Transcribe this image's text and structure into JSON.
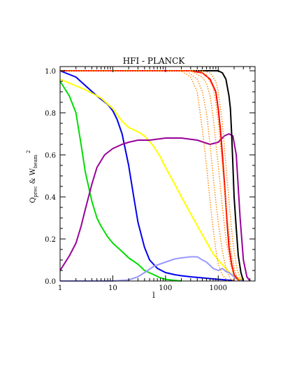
{
  "chart_data": {
    "type": "line",
    "title": "HFI - PLANCK",
    "xlabel": "l",
    "ylabel_main": "Q",
    "ylabel_main_sub": "prec",
    "ylabel_mid": " & W",
    "ylabel_beam_sub": "beam",
    "ylabel_sup": "2",
    "xscale": "log",
    "xlim": [
      1,
      5000
    ],
    "ylim": [
      0,
      1.02
    ],
    "grid": false,
    "x_ticks": [
      {
        "value": 1,
        "label": "1"
      },
      {
        "value": 10,
        "label": "10"
      },
      {
        "value": 100,
        "label": "100"
      },
      {
        "value": 1000,
        "label": "1000"
      }
    ],
    "y_ticks": [
      {
        "value": 0.0,
        "label": "0.0"
      },
      {
        "value": 0.2,
        "label": "0.2"
      },
      {
        "value": 0.4,
        "label": "0.4"
      },
      {
        "value": 0.6,
        "label": "0.6"
      },
      {
        "value": 0.8,
        "label": "0.8"
      },
      {
        "value": 1.0,
        "label": "1.0"
      }
    ],
    "series": [
      {
        "color": "#00dd00",
        "style": "solid",
        "points": [
          [
            1,
            0.95
          ],
          [
            1.5,
            0.88
          ],
          [
            2,
            0.8
          ],
          [
            2.5,
            0.65
          ],
          [
            3,
            0.52
          ],
          [
            4,
            0.38
          ],
          [
            5,
            0.3
          ],
          [
            6,
            0.26
          ],
          [
            8,
            0.21
          ],
          [
            10,
            0.18
          ],
          [
            15,
            0.14
          ],
          [
            20,
            0.11
          ],
          [
            30,
            0.08
          ],
          [
            40,
            0.05
          ],
          [
            60,
            0.03
          ],
          [
            80,
            0.015
          ],
          [
            100,
            0.008
          ],
          [
            150,
            0.003
          ],
          [
            200,
            0.0
          ]
        ]
      },
      {
        "color": "#0000ee",
        "style": "solid",
        "points": [
          [
            1,
            1.0
          ],
          [
            2,
            0.97
          ],
          [
            3,
            0.93
          ],
          [
            5,
            0.88
          ],
          [
            8,
            0.84
          ],
          [
            10,
            0.81
          ],
          [
            12,
            0.77
          ],
          [
            15,
            0.7
          ],
          [
            20,
            0.55
          ],
          [
            25,
            0.4
          ],
          [
            30,
            0.28
          ],
          [
            40,
            0.16
          ],
          [
            50,
            0.1
          ],
          [
            70,
            0.06
          ],
          [
            100,
            0.04
          ],
          [
            150,
            0.03
          ],
          [
            200,
            0.025
          ],
          [
            300,
            0.02
          ],
          [
            500,
            0.015
          ],
          [
            800,
            0.01
          ],
          [
            1000,
            0.008
          ],
          [
            2000,
            0.002
          ]
        ]
      },
      {
        "color": "#ffff00",
        "style": "solid",
        "points": [
          [
            1,
            0.96
          ],
          [
            3,
            0.91
          ],
          [
            6,
            0.87
          ],
          [
            10,
            0.82
          ],
          [
            15,
            0.76
          ],
          [
            20,
            0.73
          ],
          [
            30,
            0.71
          ],
          [
            40,
            0.69
          ],
          [
            60,
            0.64
          ],
          [
            80,
            0.59
          ],
          [
            100,
            0.54
          ],
          [
            150,
            0.46
          ],
          [
            200,
            0.4
          ],
          [
            300,
            0.32
          ],
          [
            500,
            0.22
          ],
          [
            800,
            0.13
          ],
          [
            1000,
            0.1
          ],
          [
            1500,
            0.05
          ],
          [
            2000,
            0.02
          ],
          [
            3000,
            0.005
          ]
        ]
      },
      {
        "color": "#990099",
        "style": "solid",
        "points": [
          [
            1,
            0.05
          ],
          [
            1.5,
            0.12
          ],
          [
            2,
            0.18
          ],
          [
            2.5,
            0.26
          ],
          [
            3,
            0.34
          ],
          [
            4,
            0.46
          ],
          [
            5,
            0.54
          ],
          [
            7,
            0.6
          ],
          [
            10,
            0.63
          ],
          [
            15,
            0.65
          ],
          [
            20,
            0.66
          ],
          [
            30,
            0.67
          ],
          [
            50,
            0.67
          ],
          [
            100,
            0.68
          ],
          [
            200,
            0.68
          ],
          [
            400,
            0.67
          ],
          [
            700,
            0.65
          ],
          [
            1000,
            0.66
          ],
          [
            1300,
            0.69
          ],
          [
            1600,
            0.7
          ],
          [
            1900,
            0.69
          ],
          [
            2200,
            0.6
          ],
          [
            2600,
            0.3
          ],
          [
            3000,
            0.1
          ],
          [
            3500,
            0.02
          ],
          [
            4000,
            0.0
          ]
        ]
      },
      {
        "color": "#9999ff",
        "style": "solid",
        "points": [
          [
            1,
            0.0
          ],
          [
            10,
            0.0
          ],
          [
            20,
            0.005
          ],
          [
            30,
            0.02
          ],
          [
            40,
            0.04
          ],
          [
            60,
            0.07
          ],
          [
            100,
            0.09
          ],
          [
            150,
            0.105
          ],
          [
            200,
            0.11
          ],
          [
            300,
            0.115
          ],
          [
            400,
            0.115
          ],
          [
            500,
            0.1
          ],
          [
            600,
            0.09
          ],
          [
            800,
            0.06
          ],
          [
            1000,
            0.05
          ],
          [
            1200,
            0.06
          ],
          [
            1400,
            0.045
          ],
          [
            1600,
            0.04
          ],
          [
            1800,
            0.03
          ],
          [
            2200,
            0.01
          ],
          [
            3000,
            0.0
          ]
        ]
      },
      {
        "color": "#000000",
        "style": "solid",
        "points": [
          [
            1,
            1.0
          ],
          [
            500,
            1.0
          ],
          [
            1000,
            1.0
          ],
          [
            1200,
            0.99
          ],
          [
            1400,
            0.96
          ],
          [
            1600,
            0.88
          ],
          [
            1700,
            0.82
          ],
          [
            1800,
            0.7
          ],
          [
            1900,
            0.55
          ],
          [
            2000,
            0.4
          ],
          [
            2200,
            0.25
          ],
          [
            2400,
            0.12
          ],
          [
            2700,
            0.04
          ],
          [
            3000,
            0.0
          ]
        ]
      },
      {
        "color": "#ff0000",
        "style": "solid",
        "points": [
          [
            1,
            1.0
          ],
          [
            300,
            1.0
          ],
          [
            500,
            0.99
          ],
          [
            700,
            0.96
          ],
          [
            900,
            0.9
          ],
          [
            1000,
            0.82
          ],
          [
            1100,
            0.72
          ],
          [
            1200,
            0.6
          ],
          [
            1300,
            0.48
          ],
          [
            1400,
            0.36
          ],
          [
            1500,
            0.25
          ],
          [
            1600,
            0.16
          ],
          [
            1800,
            0.08
          ],
          [
            2000,
            0.03
          ],
          [
            2500,
            0.0
          ]
        ]
      },
      {
        "color": "#ff8800",
        "style": "dotted",
        "points": [
          [
            1,
            1.0
          ],
          [
            200,
            1.0
          ],
          [
            300,
            0.97
          ],
          [
            400,
            0.9
          ],
          [
            500,
            0.72
          ],
          [
            600,
            0.55
          ],
          [
            700,
            0.38
          ],
          [
            800,
            0.25
          ],
          [
            900,
            0.15
          ],
          [
            1000,
            0.08
          ],
          [
            1200,
            0.03
          ],
          [
            1500,
            0.0
          ]
        ]
      },
      {
        "color": "#ff8800",
        "style": "dotted",
        "points": [
          [
            1,
            1.0
          ],
          [
            250,
            1.0
          ],
          [
            400,
            0.96
          ],
          [
            500,
            0.9
          ],
          [
            600,
            0.8
          ],
          [
            700,
            0.65
          ],
          [
            800,
            0.5
          ],
          [
            900,
            0.38
          ],
          [
            1000,
            0.28
          ],
          [
            1200,
            0.14
          ],
          [
            1400,
            0.06
          ],
          [
            1700,
            0.01
          ],
          [
            2000,
            0.0
          ]
        ]
      },
      {
        "color": "#ff8800",
        "style": "dotted",
        "points": [
          [
            1,
            1.0
          ],
          [
            300,
            1.0
          ],
          [
            500,
            0.97
          ],
          [
            600,
            0.94
          ],
          [
            700,
            0.88
          ],
          [
            800,
            0.78
          ],
          [
            900,
            0.66
          ],
          [
            1000,
            0.55
          ],
          [
            1200,
            0.35
          ],
          [
            1400,
            0.2
          ],
          [
            1700,
            0.08
          ],
          [
            2000,
            0.02
          ],
          [
            2500,
            0.0
          ]
        ]
      },
      {
        "color": "#ff8800",
        "style": "dotted",
        "points": [
          [
            1,
            1.0
          ],
          [
            400,
            1.0
          ],
          [
            600,
            0.98
          ],
          [
            800,
            0.92
          ],
          [
            900,
            0.85
          ],
          [
            1000,
            0.76
          ],
          [
            1200,
            0.55
          ],
          [
            1400,
            0.36
          ],
          [
            1600,
            0.22
          ],
          [
            1800,
            0.12
          ],
          [
            2100,
            0.04
          ],
          [
            2500,
            0.0
          ]
        ]
      },
      {
        "color": "#ff8800",
        "style": "dotted",
        "points": [
          [
            1,
            1.0
          ],
          [
            500,
            1.0
          ],
          [
            700,
            0.99
          ],
          [
            900,
            0.95
          ],
          [
            1000,
            0.9
          ],
          [
            1200,
            0.75
          ],
          [
            1400,
            0.55
          ],
          [
            1600,
            0.38
          ],
          [
            1800,
            0.24
          ],
          [
            2000,
            0.14
          ],
          [
            2300,
            0.05
          ],
          [
            2800,
            0.0
          ]
        ]
      }
    ]
  }
}
